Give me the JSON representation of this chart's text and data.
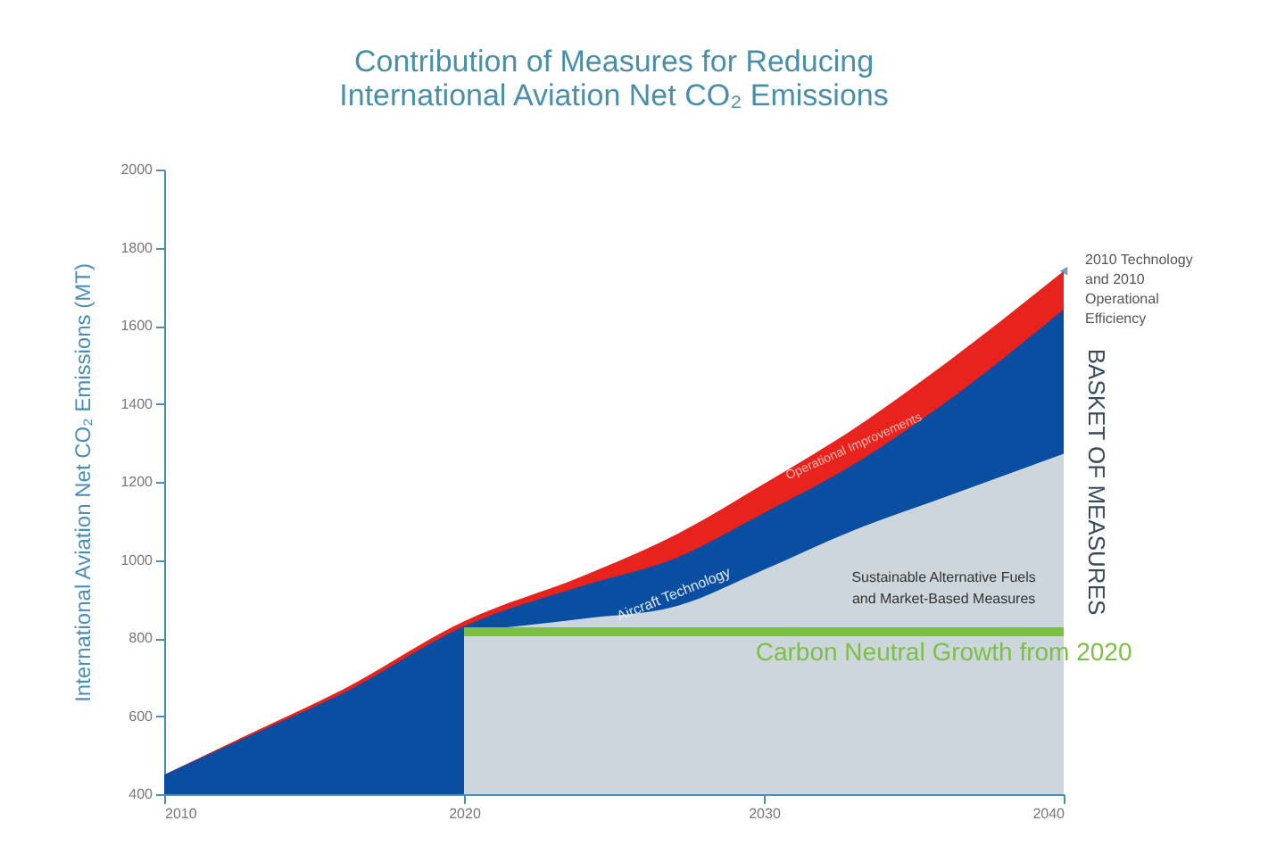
{
  "chart_data": {
    "type": "area",
    "title": "Contribution of Measures for Reducing International Aviation Net CO₂ Emissions",
    "ylabel": "International Aviation Net CO₂ Emissions (MT)",
    "x": [
      2010,
      2013,
      2016,
      2020,
      2024,
      2027,
      2030,
      2033,
      2036,
      2040
    ],
    "series": [
      {
        "name": "Operational Improvements",
        "color": "#e8231e",
        "values": [
          450,
          560,
          670,
          843,
          960,
          1062,
          1195,
          1336,
          1500,
          1740
        ]
      },
      {
        "name": "Aircraft Technology",
        "color": "#0a4ea2",
        "values": [
          450,
          555,
          660,
          830,
          935,
          1003,
          1120,
          1245,
          1400,
          1642
        ]
      },
      {
        "name": "Sustainable Alternative Fuels and Market-Based Measures",
        "color": "#cdd6dc",
        "x": [
          2020,
          2024,
          2027,
          2030,
          2033,
          2036,
          2040
        ],
        "values": [
          816,
          850,
          880,
          975,
          1076,
          1160,
          1272
        ]
      },
      {
        "name": "Carbon Neutral Growth from 2020",
        "type": "line",
        "color": "#7ac143",
        "x": [
          2020,
          2040
        ],
        "values": [
          816,
          816
        ]
      }
    ],
    "annotations": [
      {
        "text": "2010 Technology and 2010 Operational Efficiency",
        "x": 2040,
        "y": 1740
      },
      "BASKET OF MEASURES"
    ],
    "xlim": [
      2010,
      2040
    ],
    "xticks": [
      2010,
      2020,
      2030,
      2040
    ],
    "ylim": [
      400,
      2000
    ],
    "yticks": [
      400,
      600,
      800,
      1000,
      1200,
      1400,
      1600,
      1800,
      2000
    ],
    "grid": false
  }
}
